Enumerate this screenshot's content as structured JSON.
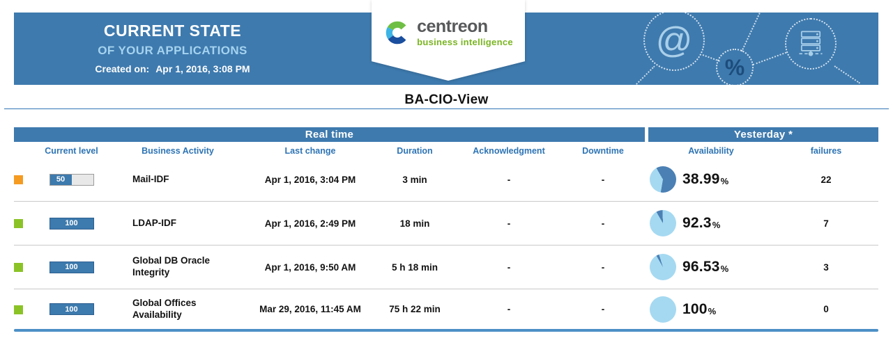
{
  "banner": {
    "title": "CURRENT STATE",
    "subtitle": "OF YOUR APPLICATIONS",
    "created_label": "Created on:",
    "created_value": "Apr 1, 2016, 3:08 PM",
    "logo_name": "centreon",
    "logo_tagline": "business intelligence",
    "decor": {
      "at_glyph": "@",
      "percent_glyph": "%"
    }
  },
  "view": {
    "title": "BA-CIO-View"
  },
  "table": {
    "group_realtime": "Real time",
    "group_yesterday": "Yesterday *",
    "columns": [
      "Current level",
      "Business Activity",
      "Last change",
      "Duration",
      "Acknowledgment",
      "Downtime",
      "Availability",
      "failures"
    ],
    "rows": [
      {
        "status": "warning",
        "current_level": 50,
        "current_level_label": "50",
        "business_activity": "Mail-IDF",
        "last_change": "Apr 1, 2016, 3:04 PM",
        "duration": "3 min",
        "acknowledgment": "-",
        "downtime": "-",
        "availability_pct": 38.99,
        "availability_value": "38.99",
        "availability_unit": "%",
        "failures": "22"
      },
      {
        "status": "ok",
        "current_level": 100,
        "current_level_label": "100",
        "business_activity": "LDAP-IDF",
        "last_change": "Apr 1, 2016, 2:49 PM",
        "duration": "18 min",
        "acknowledgment": "-",
        "downtime": "-",
        "availability_pct": 92.3,
        "availability_value": "92.3",
        "availability_unit": "%",
        "failures": "7"
      },
      {
        "status": "ok",
        "current_level": 100,
        "current_level_label": "100",
        "business_activity": "Global DB Oracle Integrity",
        "last_change": "Apr 1, 2016, 9:50 AM",
        "duration": "5 h 18 min",
        "acknowledgment": "-",
        "downtime": "-",
        "availability_pct": 96.53,
        "availability_value": "96.53",
        "availability_unit": "%",
        "failures": "3"
      },
      {
        "status": "ok",
        "current_level": 100,
        "current_level_label": "100",
        "business_activity": "Global Offices Availability",
        "last_change": "Mar 29, 2016, 11:45 AM",
        "duration": "75 h 22 min",
        "acknowledgment": "-",
        "downtime": "-",
        "availability_pct": 100,
        "availability_value": "100",
        "availability_unit": "%",
        "failures": "0"
      }
    ]
  },
  "colors": {
    "accent_blue": "#3e7aae",
    "status_ok": "#8bc327",
    "status_warning": "#f59b22",
    "pie_available": "#a5d9f1",
    "pie_unavailable": "#4b80b4"
  }
}
